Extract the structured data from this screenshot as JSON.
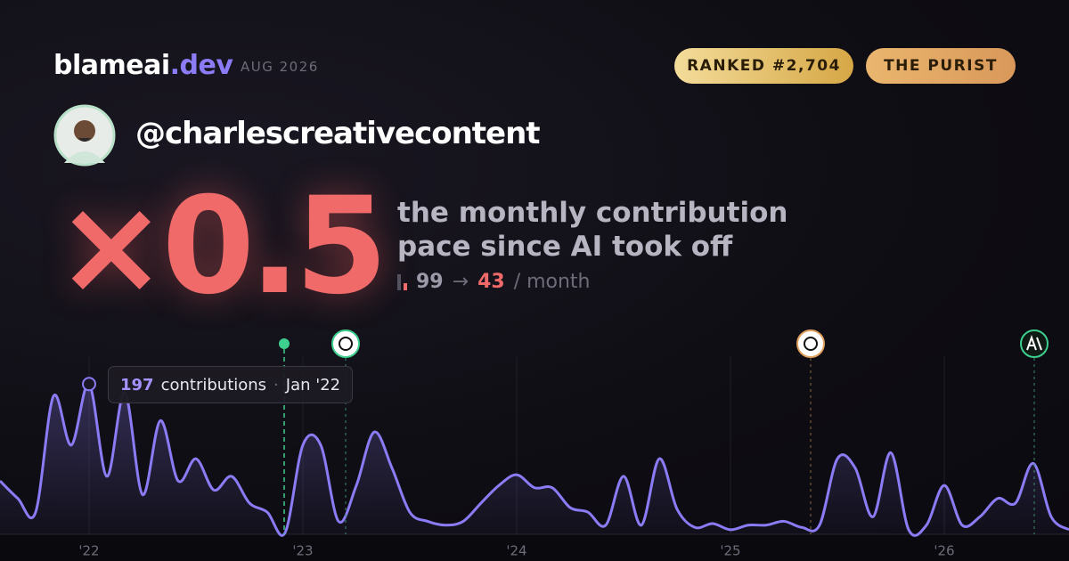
{
  "header": {
    "brand": "blameai",
    "brand_suffix": ".dev",
    "date": "AUG 2026",
    "rank_badge": "RANKED #2,704",
    "persona_badge": "THE PURIST"
  },
  "profile": {
    "handle": "@charlescreativecontent"
  },
  "stat": {
    "multiplier": "×0.5",
    "caption_lines": [
      "the monthly contribution",
      "pace since AI took off"
    ],
    "before": 99,
    "arrow": "→",
    "after": 43,
    "unit": "/ month"
  },
  "chart_data": {
    "type": "line",
    "categories": [
      null,
      null,
      null,
      null,
      null,
      "'22",
      null,
      null,
      null,
      null,
      null,
      null,
      null,
      null,
      null,
      null,
      null,
      "'23",
      null,
      null,
      null,
      null,
      null,
      null,
      null,
      null,
      null,
      null,
      null,
      "'24",
      null,
      null,
      null,
      null,
      null,
      null,
      null,
      null,
      null,
      null,
      null,
      "'25",
      null,
      null,
      null,
      null,
      null,
      null,
      null,
      null,
      null,
      null,
      null,
      "'26",
      null,
      null,
      null,
      null,
      null,
      null,
      null
    ],
    "series": [
      {
        "name": "contributions",
        "color": "#8b7cf6",
        "values": [
          70,
          47,
          29,
          181,
          117,
          197,
          76,
          186,
          52,
          149,
          70,
          99,
          58,
          76,
          41,
          29,
          2,
          117,
          117,
          17,
          64,
          134,
          87,
          29,
          17,
          12,
          17,
          41,
          64,
          78,
          61,
          61,
          35,
          29,
          12,
          76,
          12,
          99,
          33,
          9,
          14,
          6,
          12,
          12,
          17,
          9,
          12,
          99,
          87,
          23,
          107,
          6,
          12,
          64,
          12,
          23,
          47,
          41,
          93,
          23,
          6
        ]
      }
    ],
    "ylim": [
      0,
      230
    ],
    "tooltip": {
      "date": "Jan '22"
    }
  }
}
